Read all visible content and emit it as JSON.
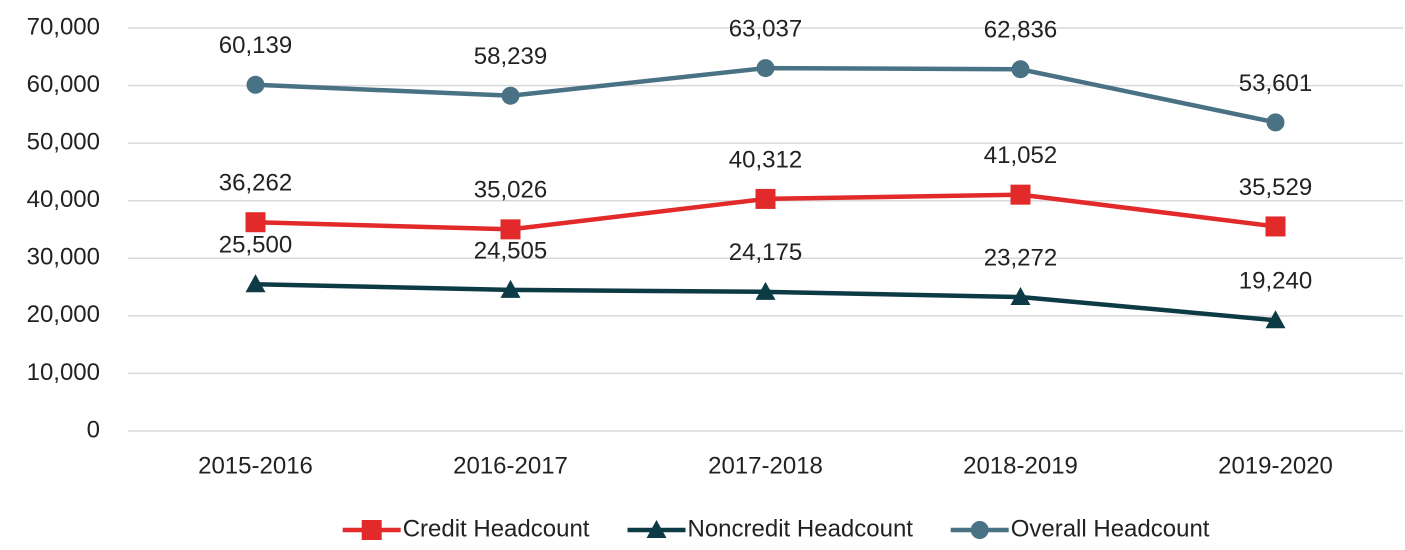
{
  "chart_data": {
    "type": "line",
    "categories": [
      "2015-2016",
      "2016-2017",
      "2017-2018",
      "2018-2019",
      "2019-2020"
    ],
    "series": [
      {
        "name": "Credit Headcount",
        "color": "#e22a2a",
        "marker": "square",
        "values": [
          36262,
          35026,
          40312,
          41052,
          35529
        ],
        "value_labels": [
          "36,262",
          "35,026",
          "40,312",
          "41,052",
          "35,529"
        ]
      },
      {
        "name": "Noncredit Headcount",
        "color": "#0d3b45",
        "marker": "triangle",
        "values": [
          25500,
          24505,
          24175,
          23272,
          19240
        ],
        "value_labels": [
          "25,500",
          "24,505",
          "24,175",
          "23,272",
          "19,240"
        ]
      },
      {
        "name": "Overall Headcount",
        "color": "#4a7285",
        "marker": "circle",
        "values": [
          60139,
          58239,
          63037,
          62836,
          53601
        ],
        "value_labels": [
          "60,139",
          "58,239",
          "63,037",
          "62,836",
          "53,601"
        ]
      }
    ],
    "ylim": [
      0,
      70000
    ],
    "yticks": [
      0,
      {
        "value": 10000,
        "label": "10,000"
      },
      {
        "value": 20000,
        "label": "20,000"
      },
      {
        "value": 30000,
        "label": "30,000"
      },
      {
        "value": 40000,
        "label": "40,000"
      },
      {
        "value": 50000,
        "label": "50,000"
      },
      {
        "value": 60000,
        "label": "60,000"
      },
      {
        "value": 70000,
        "label": "70,000"
      }
    ],
    "grid": true,
    "legend": "bottom"
  }
}
